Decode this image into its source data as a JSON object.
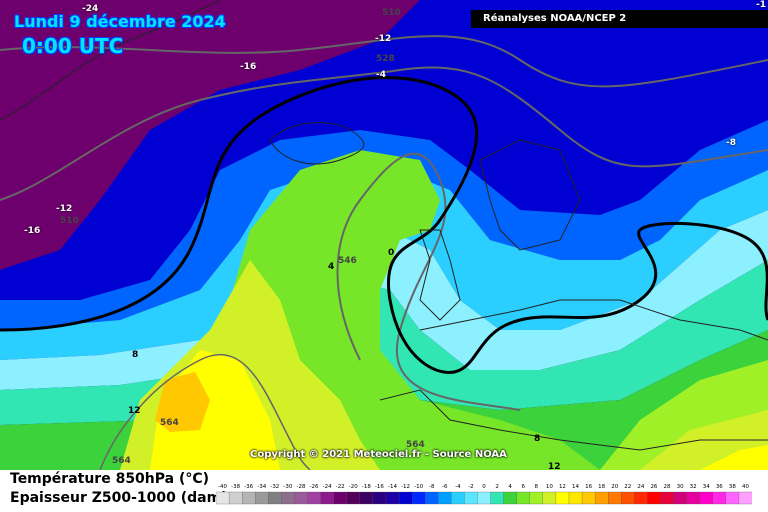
{
  "header": {
    "date": "Lundi 9 décembre 2024",
    "time": "0:00 UTC",
    "source": "Réanalyses NOAA/NCEP 2"
  },
  "copyright": "Copyright © 2021 Meteociel.fr - Source NOAA",
  "legend": {
    "line1": "Température 850hPa (°C)",
    "line2": "Epaisseur Z500-1000 (dam)",
    "scale_values": [
      "-40",
      "-38",
      "-36",
      "-34",
      "-32",
      "-30",
      "-28",
      "-26",
      "-24",
      "-22",
      "-20",
      "-18",
      "-16",
      "-14",
      "-12",
      "-10",
      "-8",
      "-6",
      "-4",
      "-2",
      "0",
      "2",
      "4",
      "6",
      "8",
      "10",
      "12",
      "14",
      "16",
      "18",
      "20",
      "22",
      "24",
      "26",
      "28",
      "30",
      "32",
      "34",
      "36",
      "38",
      "40"
    ],
    "scale_colors": [
      "#e6e6e6",
      "#cfcfcf",
      "#b4b4b4",
      "#9a9a9a",
      "#808080",
      "#8c6e8c",
      "#9a5a9a",
      "#a040a0",
      "#8c1a8c",
      "#6e006e",
      "#54005a",
      "#3c0064",
      "#2a0080",
      "#1c00a6",
      "#0000d2",
      "#0028ff",
      "#0064ff",
      "#00a0ff",
      "#2acfff",
      "#5ae6ff",
      "#8cf0ff",
      "#32e6b4",
      "#3cd23c",
      "#78e628",
      "#a0f028",
      "#d2f028",
      "#ffff00",
      "#ffe600",
      "#ffc800",
      "#ffa000",
      "#ff7800",
      "#ff5000",
      "#ff2800",
      "#ff0000",
      "#e6003c",
      "#d20078",
      "#e600a0",
      "#ff00c8",
      "#ff28e6",
      "#ff64ff",
      "#ffa0ff"
    ]
  },
  "temperature_labels": [
    "-24",
    "-12",
    "-16",
    "-4",
    "-12",
    "-16",
    "-8",
    "0",
    "4",
    "8",
    "12",
    "8",
    "12",
    "-1"
  ],
  "thickness_labels": [
    "510",
    "528",
    "510",
    "546",
    "564",
    "564",
    "564"
  ],
  "map_colors": {
    "deep_purple": "#6e006e",
    "purple_blue": "#2a0080",
    "blue": "#0000d2",
    "mid_blue": "#0064ff",
    "light_blue": "#2acfff",
    "cyan": "#8cf0ff",
    "teal": "#32e6b4",
    "green": "#3cd23c",
    "lime": "#78e628",
    "yellow_green": "#d2f028",
    "yellow": "#ffff00",
    "gold": "#ffc800"
  }
}
